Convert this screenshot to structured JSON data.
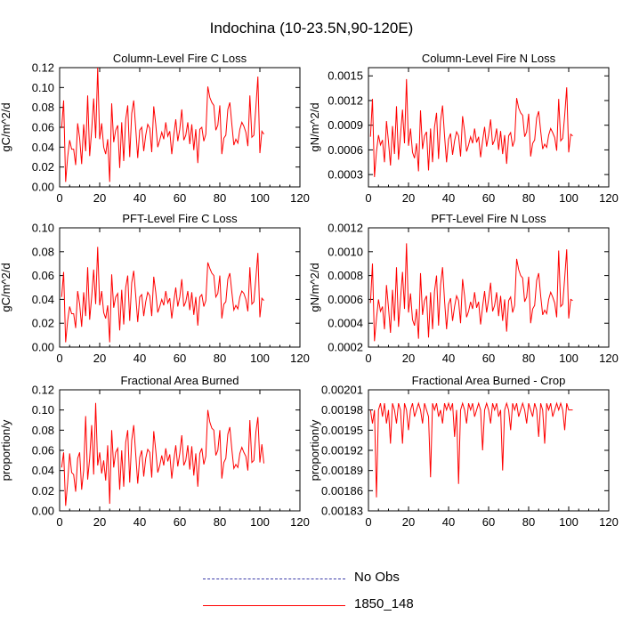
{
  "figure_title": "Indochina (10-23.5N,90-120E)",
  "colors": {
    "model": "#ff0000",
    "obs": "#3a3aa8",
    "axis": "#000000"
  },
  "legend": [
    {
      "label": "No Obs",
      "style": "dashed",
      "color": "#3a3aa8"
    },
    {
      "label": "1850_148",
      "style": "solid",
      "color": "#ff0000"
    }
  ],
  "chart_data": [
    {
      "type": "line",
      "title": "Column-Level Fire C Loss",
      "ylabel": "gC/m^2/d",
      "xlim": [
        0,
        120
      ],
      "ylim": [
        0,
        0.12
      ],
      "xticks": [
        "0",
        "20",
        "40",
        "60",
        "80",
        "100",
        "120"
      ],
      "yticks": [
        "0.00",
        "0.02",
        "0.04",
        "0.06",
        "0.08",
        "0.10",
        "0.12"
      ],
      "series": [
        {
          "name": "1850_148",
          "x_start": 1,
          "x_step": 1,
          "values": [
            0.059,
            0.087,
            0.005,
            0.03,
            0.047,
            0.038,
            0.038,
            0.022,
            0.064,
            0.049,
            0.023,
            0.063,
            0.036,
            0.092,
            0.031,
            0.057,
            0.089,
            0.049,
            0.12,
            0.048,
            0.064,
            0.04,
            0.033,
            0.048,
            0.005,
            0.084,
            0.045,
            0.057,
            0.062,
            0.019,
            0.065,
            0.026,
            0.068,
            0.082,
            0.03,
            0.074,
            0.087,
            0.059,
            0.029,
            0.057,
            0.06,
            0.036,
            0.052,
            0.063,
            0.059,
            0.035,
            0.081,
            0.063,
            0.04,
            0.047,
            0.055,
            0.048,
            0.065,
            0.051,
            0.056,
            0.033,
            0.052,
            0.068,
            0.046,
            0.058,
            0.078,
            0.047,
            0.052,
            0.065,
            0.043,
            0.063,
            0.037,
            0.058,
            0.024,
            0.058,
            0.06,
            0.046,
            0.053,
            0.101,
            0.09,
            0.085,
            0.082,
            0.057,
            0.062,
            0.082,
            0.033,
            0.049,
            0.052,
            0.078,
            0.085,
            0.063,
            0.042,
            0.048,
            0.044,
            0.058,
            0.065,
            0.061,
            0.055,
            0.041,
            0.092,
            0.05,
            0.052,
            0.08,
            0.111,
            0.034,
            0.056,
            0.053
          ]
        }
      ]
    },
    {
      "type": "line",
      "title": "Column-Level Fire N Loss",
      "ylabel": "gN/m^2/d",
      "xlim": [
        0,
        120
      ],
      "ylim": [
        0.00015,
        0.0016
      ],
      "xticks": [
        "0",
        "20",
        "40",
        "60",
        "80",
        "100",
        "120"
      ],
      "yticks": [
        "0.0003",
        "0.0006",
        "0.0009",
        "0.0012",
        "0.0015"
      ],
      "series": [
        {
          "name": "1850_148",
          "x_start": 1,
          "x_step": 1,
          "values": [
            0.00076,
            0.00122,
            0.00027,
            0.00058,
            0.00078,
            0.00066,
            0.00072,
            0.00045,
            0.00095,
            0.0007,
            0.00041,
            0.00089,
            0.00055,
            0.00113,
            0.00048,
            0.00078,
            0.00109,
            0.00068,
            0.00146,
            0.00065,
            0.00086,
            0.00057,
            0.0005,
            0.00068,
            0.00034,
            0.00108,
            0.00061,
            0.00077,
            0.00082,
            0.00035,
            0.00086,
            0.00045,
            0.00088,
            0.00105,
            0.00049,
            0.00095,
            0.00114,
            0.00077,
            0.00045,
            0.00073,
            0.0008,
            0.00054,
            0.00071,
            0.00082,
            0.00077,
            0.00052,
            0.00101,
            0.00083,
            0.00058,
            0.00066,
            0.00076,
            0.00068,
            0.00086,
            0.00069,
            0.00076,
            0.00051,
            0.00071,
            0.00088,
            0.00064,
            0.00078,
            0.00097,
            0.00066,
            0.00072,
            0.00086,
            0.0006,
            0.00083,
            0.00055,
            0.00078,
            0.00043,
            0.00077,
            0.00081,
            0.00064,
            0.00072,
            0.00123,
            0.00111,
            0.00105,
            0.00102,
            0.00076,
            0.00082,
            0.00104,
            0.00052,
            0.00068,
            0.00072,
            0.00099,
            0.00107,
            0.00083,
            0.00061,
            0.00067,
            0.00063,
            0.00078,
            0.00086,
            0.00081,
            0.00075,
            0.00059,
            0.00122,
            0.00071,
            0.00074,
            0.00102,
            0.00136,
            0.00057,
            0.00079,
            0.00077
          ]
        }
      ]
    },
    {
      "type": "line",
      "title": "PFT-Level Fire C Loss",
      "ylabel": "gC/m^2/d",
      "xlim": [
        0,
        120
      ],
      "ylim": [
        0,
        0.1
      ],
      "xticks": [
        "0",
        "20",
        "40",
        "60",
        "80",
        "100",
        "120"
      ],
      "yticks": [
        "0.00",
        "0.02",
        "0.04",
        "0.06",
        "0.08",
        "0.10"
      ],
      "series": [
        {
          "name": "1850_148",
          "x_start": 1,
          "x_step": 1,
          "values": [
            0.042,
            0.063,
            0.004,
            0.022,
            0.034,
            0.028,
            0.028,
            0.016,
            0.047,
            0.036,
            0.017,
            0.046,
            0.026,
            0.067,
            0.023,
            0.042,
            0.065,
            0.036,
            0.084,
            0.035,
            0.047,
            0.029,
            0.024,
            0.035,
            0.004,
            0.061,
            0.033,
            0.042,
            0.045,
            0.014,
            0.048,
            0.019,
            0.05,
            0.06,
            0.022,
            0.054,
            0.064,
            0.043,
            0.021,
            0.042,
            0.044,
            0.026,
            0.038,
            0.046,
            0.043,
            0.026,
            0.059,
            0.046,
            0.029,
            0.034,
            0.04,
            0.035,
            0.047,
            0.037,
            0.041,
            0.024,
            0.038,
            0.05,
            0.034,
            0.042,
            0.057,
            0.034,
            0.038,
            0.047,
            0.031,
            0.046,
            0.027,
            0.042,
            0.018,
            0.042,
            0.044,
            0.034,
            0.039,
            0.071,
            0.066,
            0.062,
            0.06,
            0.042,
            0.045,
            0.06,
            0.024,
            0.036,
            0.038,
            0.057,
            0.062,
            0.046,
            0.031,
            0.035,
            0.032,
            0.042,
            0.047,
            0.045,
            0.04,
            0.03,
            0.067,
            0.036,
            0.038,
            0.058,
            0.079,
            0.025,
            0.041,
            0.039
          ]
        }
      ]
    },
    {
      "type": "line",
      "title": "PFT-Level Fire N Loss",
      "ylabel": "gN/m^2/d",
      "xlim": [
        0,
        120
      ],
      "ylim": [
        0.0002,
        0.0012
      ],
      "xticks": [
        "0",
        "20",
        "40",
        "60",
        "80",
        "100",
        "120"
      ],
      "yticks": [
        "0.0002",
        "0.0004",
        "0.0006",
        "0.0008",
        "0.0010",
        "0.0012"
      ],
      "series": [
        {
          "name": "1850_148",
          "x_start": 1,
          "x_step": 1,
          "values": [
            0.00057,
            0.0009,
            0.00025,
            0.00044,
            0.0006,
            0.0005,
            0.00054,
            0.00035,
            0.00072,
            0.00053,
            0.00032,
            0.00068,
            0.00042,
            0.00087,
            0.00037,
            0.0006,
            0.00083,
            0.00052,
            0.00107,
            0.00049,
            0.00065,
            0.00043,
            0.00038,
            0.00052,
            0.00027,
            0.00082,
            0.00047,
            0.00059,
            0.00063,
            0.00028,
            0.00066,
            0.00035,
            0.00067,
            0.0008,
            0.00038,
            0.00072,
            0.00087,
            0.00059,
            0.00035,
            0.00056,
            0.00061,
            0.00042,
            0.00054,
            0.00063,
            0.00059,
            0.0004,
            0.00077,
            0.00063,
            0.00045,
            0.0005,
            0.00058,
            0.00052,
            0.00066,
            0.00053,
            0.00058,
            0.00039,
            0.00054,
            0.00067,
            0.00049,
            0.0006,
            0.00074,
            0.0005,
            0.00055,
            0.00066,
            0.00046,
            0.00063,
            0.00042,
            0.0006,
            0.00033,
            0.00059,
            0.00062,
            0.00049,
            0.00055,
            0.00094,
            0.00085,
            0.0008,
            0.00078,
            0.00058,
            0.00062,
            0.00079,
            0.0004,
            0.00052,
            0.00055,
            0.00076,
            0.00082,
            0.00063,
            0.00047,
            0.00051,
            0.00048,
            0.0006,
            0.00066,
            0.00062,
            0.00057,
            0.00045,
            0.00101,
            0.00054,
            0.00056,
            0.00078,
            0.00102,
            0.00044,
            0.0006,
            0.00059
          ]
        }
      ]
    },
    {
      "type": "line",
      "title": "Fractional Area Burned",
      "ylabel": "proportion/y",
      "xlim": [
        0,
        120
      ],
      "ylim": [
        0,
        0.12
      ],
      "xticks": [
        "0",
        "20",
        "40",
        "60",
        "80",
        "100",
        "120"
      ],
      "yticks": [
        "0.00",
        "0.02",
        "0.04",
        "0.06",
        "0.08",
        "0.10",
        "0.12"
      ],
      "series": [
        {
          "name": "1850_148",
          "x_start": 1,
          "x_step": 1,
          "values": [
            0.043,
            0.058,
            0.005,
            0.028,
            0.057,
            0.038,
            0.036,
            0.019,
            0.052,
            0.058,
            0.021,
            0.04,
            0.094,
            0.031,
            0.052,
            0.085,
            0.036,
            0.107,
            0.045,
            0.058,
            0.037,
            0.05,
            0.03,
            0.065,
            0.007,
            0.08,
            0.043,
            0.058,
            0.062,
            0.021,
            0.06,
            0.024,
            0.068,
            0.08,
            0.028,
            0.07,
            0.085,
            0.056,
            0.027,
            0.053,
            0.06,
            0.034,
            0.052,
            0.061,
            0.058,
            0.033,
            0.079,
            0.06,
            0.038,
            0.045,
            0.055,
            0.045,
            0.062,
            0.049,
            0.056,
            0.032,
            0.05,
            0.065,
            0.044,
            0.057,
            0.075,
            0.045,
            0.05,
            0.065,
            0.041,
            0.064,
            0.035,
            0.057,
            0.024,
            0.057,
            0.062,
            0.046,
            0.054,
            0.1,
            0.088,
            0.082,
            0.08,
            0.055,
            0.06,
            0.08,
            0.032,
            0.048,
            0.052,
            0.076,
            0.083,
            0.061,
            0.042,
            0.046,
            0.043,
            0.057,
            0.063,
            0.058,
            0.054,
            0.04,
            0.09,
            0.048,
            0.05,
            0.078,
            0.093,
            0.048,
            0.066,
            0.047
          ]
        }
      ]
    },
    {
      "type": "line",
      "title": "Fractional Area Burned - Crop",
      "ylabel": "proportion/y",
      "xlim": [
        0,
        120
      ],
      "ylim": [
        0.00183,
        0.00201
      ],
      "xticks": [
        "0",
        "20",
        "40",
        "60",
        "80",
        "100",
        "120"
      ],
      "yticks": [
        "0.00183",
        "0.00186",
        "0.00189",
        "0.00192",
        "0.00195",
        "0.00198",
        "0.00201"
      ],
      "series": [
        {
          "name": "1850_148",
          "x_start": 1,
          "x_step": 1,
          "values": [
            0.00198,
            0.00196,
            0.00198,
            0.00185,
            0.00198,
            0.00199,
            0.00197,
            0.00199,
            0.00196,
            0.00198,
            0.00193,
            0.00199,
            0.00198,
            0.00196,
            0.00199,
            0.00198,
            0.00193,
            0.00199,
            0.00198,
            0.00195,
            0.00198,
            0.00199,
            0.00197,
            0.00198,
            0.00199,
            0.00198,
            0.00196,
            0.00199,
            0.00198,
            0.00197,
            0.00188,
            0.00199,
            0.00198,
            0.00199,
            0.00197,
            0.00198,
            0.00196,
            0.00199,
            0.00198,
            0.00199,
            0.00198,
            0.00199,
            0.00194,
            0.00198,
            0.00187,
            0.00198,
            0.00199,
            0.00198,
            0.00196,
            0.00199,
            0.00198,
            0.00199,
            0.00197,
            0.00198,
            0.00199,
            0.00198,
            0.00192,
            0.00198,
            0.00199,
            0.00198,
            0.00196,
            0.00199,
            0.00198,
            0.00199,
            0.00197,
            0.00198,
            0.00189,
            0.00198,
            0.00199,
            0.00198,
            0.00195,
            0.00199,
            0.00198,
            0.00199,
            0.00197,
            0.00198,
            0.00199,
            0.00198,
            0.00196,
            0.00199,
            0.00198,
            0.00197,
            0.00199,
            0.00198,
            0.00194,
            0.00199,
            0.00198,
            0.00193,
            0.00199,
            0.00198,
            0.00199,
            0.00197,
            0.00198,
            0.00199,
            0.00198,
            0.00199,
            0.00198,
            0.00195,
            0.00199,
            0.00198,
            0.00198,
            0.00198
          ]
        }
      ]
    }
  ]
}
